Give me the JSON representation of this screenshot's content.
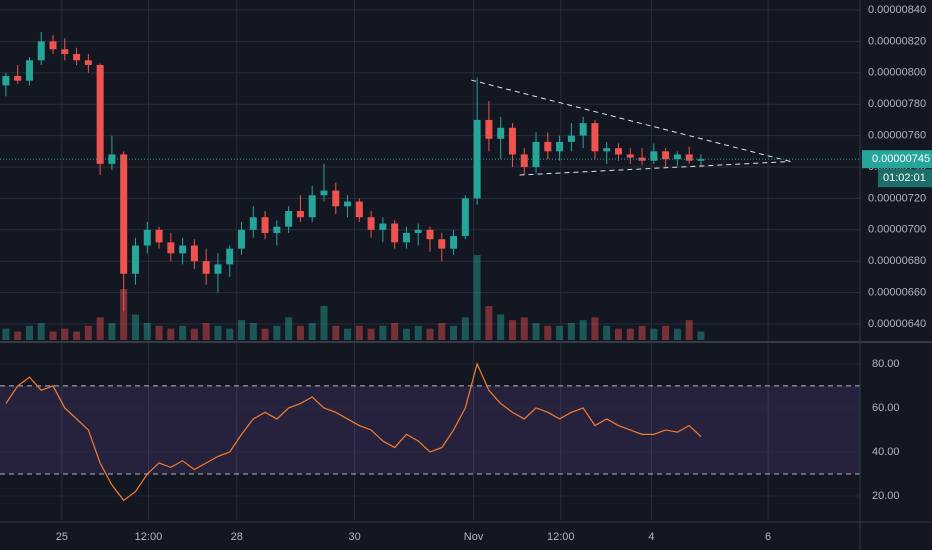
{
  "chart_data": [
    {
      "type": "candlestick",
      "x": [
        0,
        1,
        2,
        3,
        4,
        5,
        6,
        7,
        8,
        9,
        10,
        11,
        12,
        13,
        14,
        15,
        16,
        17,
        18,
        19,
        20,
        21,
        22,
        23,
        24,
        25,
        26,
        27,
        28,
        29,
        30,
        31,
        32,
        33,
        34,
        35,
        36,
        37,
        38,
        39,
        40,
        41,
        42,
        43,
        44,
        45,
        46,
        47,
        48,
        49,
        50,
        51,
        52,
        53,
        54,
        55,
        56,
        57,
        58,
        59
      ],
      "open": [
        7.92e-06,
        7.98e-06,
        7.95e-06,
        8.08e-06,
        8.2e-06,
        8.15e-06,
        8.12e-06,
        8.08e-06,
        8.05e-06,
        7.42e-06,
        7.48e-06,
        6.72e-06,
        6.9e-06,
        7e-06,
        6.92e-06,
        6.85e-06,
        6.9e-06,
        6.8e-06,
        6.72e-06,
        6.78e-06,
        6.88e-06,
        7e-06,
        7.08e-06,
        6.98e-06,
        7.02e-06,
        7.12e-06,
        7.08e-06,
        7.22e-06,
        7.25e-06,
        7.15e-06,
        7.18e-06,
        7.08e-06,
        7e-06,
        7.04e-06,
        6.92e-06,
        6.98e-06,
        7e-06,
        6.94e-06,
        6.88e-06,
        6.96e-06,
        7.2e-06,
        7.7e-06,
        7.58e-06,
        7.65e-06,
        7.48e-06,
        7.4e-06,
        7.56e-06,
        7.5e-06,
        7.56e-06,
        7.6e-06,
        7.68e-06,
        7.5e-06,
        7.52e-06,
        7.48e-06,
        7.46e-06,
        7.44e-06,
        7.5e-06,
        7.45e-06,
        7.48e-06,
        7.44e-06
      ],
      "high": [
        8e-06,
        8.05e-06,
        8.1e-06,
        8.26e-06,
        8.24e-06,
        8.22e-06,
        8.16e-06,
        8.12e-06,
        8.06e-06,
        7.6e-06,
        7.5e-06,
        6.95e-06,
        7.05e-06,
        7.02e-06,
        6.98e-06,
        6.95e-06,
        6.94e-06,
        6.88e-06,
        6.85e-06,
        6.9e-06,
        7.05e-06,
        7.15e-06,
        7.12e-06,
        7.06e-06,
        7.15e-06,
        7.22e-06,
        7.28e-06,
        7.42e-06,
        7.3e-06,
        7.22e-06,
        7.2e-06,
        7.12e-06,
        7.08e-06,
        7.06e-06,
        7.02e-06,
        7.04e-06,
        7.02e-06,
        6.98e-06,
        7e-06,
        7.22e-06,
        7.97e-06,
        7.82e-06,
        7.72e-06,
        7.68e-06,
        7.52e-06,
        7.62e-06,
        7.62e-06,
        7.6e-06,
        7.68e-06,
        7.72e-06,
        7.7e-06,
        7.56e-06,
        7.55e-06,
        7.52e-06,
        7.52e-06,
        7.55e-06,
        7.52e-06,
        7.5e-06,
        7.53e-06,
        7.48e-06
      ],
      "low": [
        7.85e-06,
        7.93e-06,
        7.92e-06,
        8.05e-06,
        8.12e-06,
        8.08e-06,
        8.05e-06,
        8e-06,
        7.35e-06,
        7.38e-06,
        6.48e-06,
        6.65e-06,
        6.85e-06,
        6.88e-06,
        6.8e-06,
        6.78e-06,
        6.75e-06,
        6.65e-06,
        6.6e-06,
        6.7e-06,
        6.84e-06,
        6.95e-06,
        6.94e-06,
        6.9e-06,
        6.98e-06,
        7.05e-06,
        7.05e-06,
        7.18e-06,
        7.1e-06,
        7.08e-06,
        7.05e-06,
        6.95e-06,
        6.92e-06,
        6.88e-06,
        6.88e-06,
        6.9e-06,
        6.86e-06,
        6.8e-06,
        6.84e-06,
        6.94e-06,
        7.16e-06,
        7.5e-06,
        7.45e-06,
        7.4e-06,
        7.35e-06,
        7.36e-06,
        7.45e-06,
        7.44e-06,
        7.5e-06,
        7.52e-06,
        7.45e-06,
        7.42e-06,
        7.44e-06,
        7.42e-06,
        7.41e-06,
        7.42e-06,
        7.4e-06,
        7.41e-06,
        7.42e-06,
        7.41e-06
      ],
      "close": [
        7.98e-06,
        7.95e-06,
        8.08e-06,
        8.2e-06,
        8.15e-06,
        8.12e-06,
        8.08e-06,
        8.05e-06,
        7.42e-06,
        7.48e-06,
        6.72e-06,
        6.9e-06,
        7e-06,
        6.92e-06,
        6.85e-06,
        6.9e-06,
        6.8e-06,
        6.72e-06,
        6.78e-06,
        6.88e-06,
        7e-06,
        7.08e-06,
        6.98e-06,
        7.02e-06,
        7.12e-06,
        7.08e-06,
        7.22e-06,
        7.25e-06,
        7.15e-06,
        7.18e-06,
        7.08e-06,
        7e-06,
        7.04e-06,
        6.92e-06,
        6.98e-06,
        7e-06,
        6.94e-06,
        6.88e-06,
        6.96e-06,
        7.2e-06,
        7.7e-06,
        7.58e-06,
        7.65e-06,
        7.48e-06,
        7.4e-06,
        7.56e-06,
        7.5e-06,
        7.56e-06,
        7.6e-06,
        7.68e-06,
        7.5e-06,
        7.52e-06,
        7.48e-06,
        7.46e-06,
        7.44e-06,
        7.5e-06,
        7.45e-06,
        7.48e-06,
        7.44e-06,
        7.45e-06
      ],
      "volume": [
        4,
        3,
        5,
        6,
        3,
        4,
        3,
        5,
        8,
        6,
        18,
        9,
        6,
        5,
        4,
        5,
        4,
        6,
        5,
        4,
        7,
        6,
        4,
        5,
        8,
        5,
        6,
        12,
        5,
        4,
        5,
        4,
        5,
        6,
        4,
        5,
        4,
        6,
        5,
        8,
        30,
        12,
        9,
        7,
        8,
        6,
        5,
        5,
        6,
        7,
        8,
        5,
        4,
        4,
        5,
        4,
        5,
        4,
        7,
        3
      ],
      "up_color": "#26a69a",
      "down_color": "#ef5350",
      "xlim": [
        -0.5,
        72.5
      ],
      "xticks": [
        {
          "value": 4.75,
          "label": "25"
        },
        {
          "value": 12.1,
          "label": "12:00"
        },
        {
          "value": 19.6,
          "label": "28"
        },
        {
          "value": 29.6,
          "label": "30"
        },
        {
          "value": 39.7,
          "label": "Nov"
        },
        {
          "value": 47.1,
          "label": "12:00"
        },
        {
          "value": 54.8,
          "label": "4"
        },
        {
          "value": 64.7,
          "label": "6"
        }
      ],
      "ylim": [
        6.298e-06,
        8.464e-06
      ],
      "yticks": [
        {
          "value": 6.4e-06,
          "label": "0.00000640"
        },
        {
          "value": 6.6e-06,
          "label": "0.00000660"
        },
        {
          "value": 6.8e-06,
          "label": "0.00000680"
        },
        {
          "value": 7e-06,
          "label": "0.00000700"
        },
        {
          "value": 7.2e-06,
          "label": "0.00000720"
        },
        {
          "value": 7.4e-06,
          "label": "0.00000740"
        },
        {
          "value": 7.6e-06,
          "label": "0.00000760"
        },
        {
          "value": 7.8e-06,
          "label": "0.00000780"
        },
        {
          "value": 8e-06,
          "label": "0.00000800"
        },
        {
          "value": 8.2e-06,
          "label": "0.00000820"
        },
        {
          "value": 8.4e-06,
          "label": "0.00000840"
        }
      ],
      "last_price": {
        "value": 7.45e-06,
        "label": "0.00000745"
      },
      "countdown": "01:02:01",
      "trendlines": [
        {
          "x": [
            39.5,
            66.6
          ],
          "y": [
            7.954e-06,
            7.435e-06
          ]
        },
        {
          "x": [
            43.6,
            66.6
          ],
          "y": [
            7.349e-06,
            7.435e-06
          ]
        }
      ],
      "grid": true
    },
    {
      "type": "line",
      "x": [
        0,
        1,
        2,
        3,
        4,
        5,
        6,
        7,
        8,
        9,
        10,
        11,
        12,
        13,
        14,
        15,
        16,
        17,
        18,
        19,
        20,
        21,
        22,
        23,
        24,
        25,
        26,
        27,
        28,
        29,
        30,
        31,
        32,
        33,
        34,
        35,
        36,
        37,
        38,
        39,
        40,
        41,
        42,
        43,
        44,
        45,
        46,
        47,
        48,
        49,
        50,
        51,
        52,
        53,
        54,
        55,
        56,
        57,
        58,
        59
      ],
      "values": [
        62,
        70,
        74,
        68,
        70,
        60,
        55,
        50,
        35,
        25,
        18,
        22,
        30,
        35,
        33,
        36,
        32,
        35,
        38,
        40,
        48,
        55,
        58,
        55,
        60,
        62,
        65,
        60,
        58,
        55,
        52,
        50,
        45,
        42,
        48,
        45,
        40,
        42,
        50,
        60,
        80,
        68,
        62,
        58,
        55,
        60,
        58,
        55,
        58,
        60,
        52,
        55,
        52,
        50,
        48,
        48,
        50,
        49,
        52,
        47
      ],
      "color": "#f57c2e",
      "ylim": [
        9.1,
        89.5
      ],
      "yticks": [
        {
          "value": 20,
          "label": "20.00"
        },
        {
          "value": 40,
          "label": "40.00"
        },
        {
          "value": 60,
          "label": "60.00"
        },
        {
          "value": 80,
          "label": "80.00"
        }
      ],
      "bands": [
        30,
        70
      ],
      "band_color": "#7e57c2"
    }
  ]
}
